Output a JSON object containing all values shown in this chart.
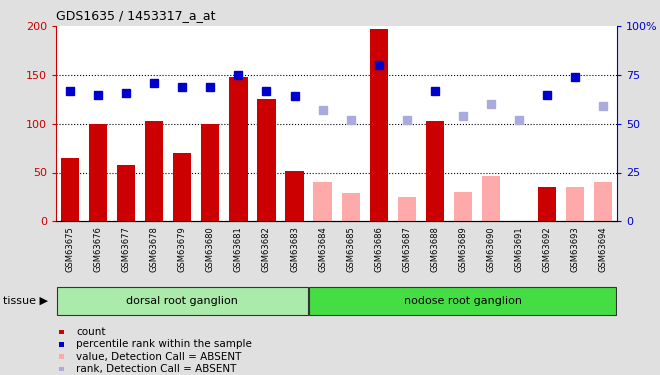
{
  "title": "GDS1635 / 1453317_a_at",
  "samples": [
    "GSM63675",
    "GSM63676",
    "GSM63677",
    "GSM63678",
    "GSM63679",
    "GSM63680",
    "GSM63681",
    "GSM63682",
    "GSM63683",
    "GSM63684",
    "GSM63685",
    "GSM63686",
    "GSM63687",
    "GSM63688",
    "GSM63689",
    "GSM63690",
    "GSM63691",
    "GSM63692",
    "GSM63693",
    "GSM63694"
  ],
  "bar_values": [
    65,
    100,
    58,
    103,
    70,
    100,
    148,
    125,
    52,
    null,
    null,
    197,
    null,
    103,
    null,
    null,
    null,
    35,
    null,
    null
  ],
  "bar_absent_values": [
    null,
    null,
    null,
    null,
    null,
    null,
    null,
    null,
    null,
    40,
    29,
    null,
    25,
    null,
    30,
    46,
    null,
    null,
    35,
    40
  ],
  "rank_values": [
    67,
    65,
    66,
    71,
    69,
    69,
    75,
    67,
    64,
    null,
    null,
    80,
    null,
    67,
    null,
    null,
    null,
    65,
    74,
    null
  ],
  "rank_absent_values": [
    null,
    null,
    null,
    null,
    null,
    null,
    null,
    null,
    null,
    57,
    52,
    null,
    52,
    null,
    54,
    60,
    52,
    null,
    null,
    59
  ],
  "bar_color": "#cc0000",
  "bar_absent_color": "#ffaaaa",
  "rank_color": "#0000cc",
  "rank_absent_color": "#aaaadd",
  "ylim_left": [
    0,
    200
  ],
  "ylim_right": [
    0,
    100
  ],
  "yticks_left": [
    0,
    50,
    100,
    150,
    200
  ],
  "yticks_right": [
    0,
    25,
    50,
    75,
    100
  ],
  "tissue_groups": [
    {
      "label": "dorsal root ganglion",
      "start": 0,
      "end": 8,
      "color": "#aaeaaa"
    },
    {
      "label": "nodose root ganglion",
      "start": 9,
      "end": 19,
      "color": "#44dd44"
    }
  ],
  "tissue_label": "tissue",
  "legend_items": [
    {
      "label": "count",
      "color": "#cc0000"
    },
    {
      "label": "percentile rank within the sample",
      "color": "#0000cc"
    },
    {
      "label": "value, Detection Call = ABSENT",
      "color": "#ffaaaa"
    },
    {
      "label": "rank, Detection Call = ABSENT",
      "color": "#aaaadd"
    }
  ],
  "background_color": "#e0e0e0",
  "plot_bg_color": "#ffffff",
  "rank_marker_size": 6
}
